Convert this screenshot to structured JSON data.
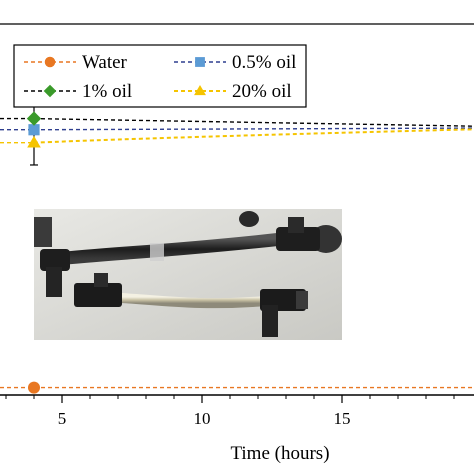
{
  "chart_data": {
    "type": "line",
    "title": "",
    "xlabel": "Time (hours)",
    "ylabel": "",
    "x_ticks": [
      5,
      10,
      15
    ],
    "xlim": [
      0,
      21.7
    ],
    "ylim": [
      0,
      1
    ],
    "grid": false,
    "legend_placement": "top-left",
    "series": [
      {
        "name": "Water",
        "marker": "circle",
        "color": "#e87722",
        "line_color": "#e87722",
        "x": [
          4,
          21.7
        ],
        "y": [
          0.02,
          0.02
        ]
      },
      {
        "name": "0.5% oil",
        "marker": "square",
        "color": "#5b9bd5",
        "line_color": "#2f3f8f",
        "x": [
          4,
          21.7
        ],
        "y": [
          0.715,
          0.72
        ]
      },
      {
        "name": "1% oil",
        "marker": "diamond",
        "color": "#3a9a2a",
        "line_color": "#000000",
        "x": [
          4,
          21.7
        ],
        "y": [
          0.745,
          0.722
        ]
      },
      {
        "name": "20% oil",
        "marker": "triangle",
        "color": "#f5c400",
        "line_color": "#f5c400",
        "x": [
          4,
          21.7
        ],
        "y": [
          0.68,
          0.72
        ]
      }
    ],
    "error_bar": {
      "x": 4,
      "y_low": 0.62,
      "y_high": 0.8
    }
  },
  "inset": {
    "description_icon": "photo-inset"
  }
}
